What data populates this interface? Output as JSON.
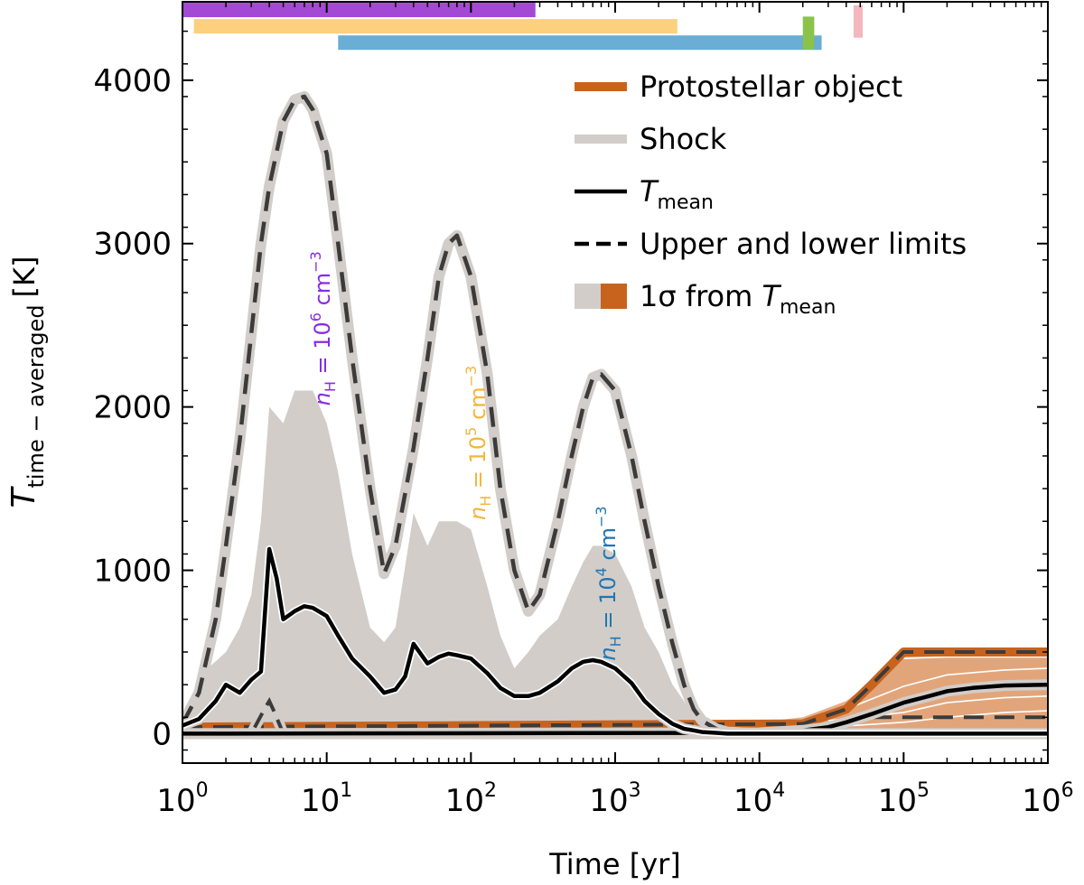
{
  "chart_data": {
    "type": "line",
    "xscale": "log",
    "xlim": [
      1,
      1000000
    ],
    "ylim": [
      -180,
      4480
    ],
    "xlabel": "Time [yr]",
    "ylabel": {
      "main": "T",
      "sub": "time − averaged",
      "unit": "[K]"
    },
    "xticks": [
      {
        "value": 1,
        "base": "10",
        "exp": "0"
      },
      {
        "value": 10,
        "base": "10",
        "exp": "1"
      },
      {
        "value": 100,
        "base": "10",
        "exp": "2"
      },
      {
        "value": 1000,
        "base": "10",
        "exp": "3"
      },
      {
        "value": 10000,
        "base": "10",
        "exp": "4"
      },
      {
        "value": 100000,
        "base": "10",
        "exp": "5"
      },
      {
        "value": 1000000,
        "base": "10",
        "exp": "6"
      }
    ],
    "yticks": [
      {
        "value": 0,
        "label": "0"
      },
      {
        "value": 1000,
        "label": "1000"
      },
      {
        "value": 2000,
        "label": "2000"
      },
      {
        "value": 3000,
        "label": "3000"
      },
      {
        "value": 4000,
        "label": "4000"
      }
    ],
    "colors": {
      "shock": "#d2cdc9",
      "protostar": "#c8631e",
      "protostar_band": "#e2a57a",
      "dashed": "#3b3b3b",
      "mean": "#000000",
      "purple": "#a349d6",
      "orange": "#fcd07d",
      "blue": "#6aadd5",
      "green": "#8bc34a",
      "pink": "#f3b8bd",
      "label_purple": "#8a2be2",
      "label_orange": "#f4b63b",
      "label_blue": "#1f77b4"
    },
    "phase_bars": [
      {
        "name": "nH 1e6",
        "color": "purple",
        "x": [
          1,
          280
        ],
        "y": 4430
      },
      {
        "name": "nH 1e5",
        "color": "orange",
        "x": [
          1.2,
          2700
        ],
        "y": 4330
      },
      {
        "name": "nH 1e4",
        "color": "blue",
        "x": [
          12,
          27000
        ],
        "y": 4230
      },
      {
        "name": "green marker",
        "color": "green",
        "x": [
          20000,
          24000
        ],
        "y": 4290,
        "tall": true
      },
      {
        "name": "pink marker",
        "color": "pink",
        "x": [
          45000,
          52000
        ],
        "y": 4360,
        "tall": true
      }
    ],
    "series": {
      "shock_upper": {
        "x": [
          1,
          1.3,
          1.7,
          2,
          2.5,
          3,
          3.5,
          4,
          5,
          6,
          7,
          8,
          10,
          12,
          15,
          20,
          25,
          30,
          40,
          50,
          60,
          70,
          80,
          100,
          130,
          160,
          200,
          250,
          300,
          400,
          500,
          600,
          700,
          800,
          1000,
          1300,
          1600,
          2000,
          2500,
          3000,
          3500,
          4000,
          5000,
          6000,
          10000,
          100000,
          1000000
        ],
        "y": [
          60,
          250,
          700,
          1150,
          1800,
          2450,
          3000,
          3350,
          3750,
          3880,
          3900,
          3820,
          3550,
          3000,
          2300,
          1500,
          980,
          1150,
          1750,
          2300,
          2800,
          3000,
          3050,
          2800,
          2200,
          1500,
          1000,
          750,
          850,
          1300,
          1700,
          2000,
          2180,
          2200,
          2100,
          1700,
          1300,
          900,
          550,
          300,
          150,
          80,
          30,
          10,
          0,
          0,
          0
        ]
      },
      "shock_lower": {
        "x": [
          1,
          3,
          3.7,
          4,
          4.3,
          5,
          1000000
        ],
        "y": [
          0,
          0,
          150,
          200,
          140,
          0,
          0
        ]
      },
      "shock_sigma_upper": {
        "x": [
          1,
          1.5,
          2,
          2.5,
          3,
          3.5,
          4,
          5,
          6,
          7,
          8,
          10,
          12,
          15,
          20,
          25,
          30,
          40,
          50,
          60,
          70,
          80,
          100,
          130,
          160,
          200,
          250,
          300,
          400,
          500,
          600,
          700,
          800,
          1000,
          1300,
          1600,
          2000,
          2500,
          3000,
          3500,
          4000,
          5000,
          10000,
          1000000
        ],
        "y": [
          30,
          400,
          500,
          650,
          850,
          1300,
          2000,
          1900,
          2100,
          2100,
          2100,
          1900,
          1600,
          1100,
          650,
          560,
          650,
          1350,
          1150,
          1300,
          1300,
          1300,
          1250,
          900,
          600,
          400,
          500,
          600,
          700,
          900,
          1050,
          1150,
          1150,
          1100,
          900,
          650,
          500,
          300,
          200,
          100,
          50,
          20,
          0,
          0
        ]
      },
      "mean": {
        "x": [
          1,
          1.3,
          1.7,
          2,
          2.5,
          3,
          3.5,
          4,
          4.5,
          5,
          6,
          7,
          8,
          10,
          12,
          15,
          20,
          25,
          30,
          35,
          40,
          50,
          60,
          70,
          80,
          100,
          130,
          160,
          200,
          250,
          300,
          400,
          500,
          600,
          700,
          800,
          1000,
          1300,
          1600,
          2000,
          2500,
          3000,
          3500,
          4000,
          5000,
          6000,
          10000,
          1000000
        ],
        "y": [
          50,
          90,
          200,
          300,
          250,
          330,
          380,
          1130,
          950,
          700,
          750,
          780,
          770,
          720,
          600,
          460,
          350,
          250,
          270,
          350,
          550,
          430,
          470,
          490,
          480,
          460,
          370,
          280,
          230,
          230,
          250,
          320,
          400,
          440,
          450,
          440,
          400,
          310,
          200,
          120,
          60,
          30,
          20,
          10,
          5,
          0,
          0,
          0
        ]
      },
      "proto_upper": {
        "x": [
          1,
          20000,
          40000,
          60000,
          100000,
          1000000
        ],
        "y": [
          40,
          60,
          150,
          300,
          500,
          500
        ]
      },
      "proto_lower": {
        "x": [
          1,
          1000000
        ],
        "y": [
          0,
          0
        ]
      },
      "proto_sigma_upper": {
        "x": [
          1,
          10000,
          20000,
          40000,
          60000,
          80000,
          100000,
          200000,
          400000,
          1000000
        ],
        "y": [
          50,
          70,
          100,
          200,
          320,
          400,
          480,
          500,
          500,
          500
        ]
      },
      "proto_sigma_lower": {
        "x": [
          1,
          1000000
        ],
        "y": [
          0,
          0
        ]
      },
      "proto_mean": {
        "x": [
          1,
          10000,
          20000,
          30000,
          40000,
          60000,
          100000,
          150000,
          200000,
          300000,
          500000,
          1000000
        ],
        "y": [
          0,
          5,
          20,
          40,
          70,
          120,
          190,
          230,
          260,
          280,
          295,
          300
        ]
      },
      "proto_white_lines": [
        {
          "x": [
            100000,
            200000,
            500000,
            1000000
          ],
          "y": [
            460,
            470,
            470,
            470
          ]
        },
        {
          "x": [
            40000,
            100000,
            200000,
            500000,
            1000000
          ],
          "y": [
            150,
            290,
            360,
            390,
            400
          ]
        },
        {
          "x": [
            30000,
            100000,
            200000,
            500000,
            1000000
          ],
          "y": [
            80,
            130,
            190,
            220,
            230
          ]
        },
        {
          "x": [
            30000,
            100000,
            200000,
            500000,
            1000000
          ],
          "y": [
            40,
            70,
            100,
            130,
            140
          ]
        }
      ],
      "proto_dash_lower": {
        "x": [
          60000,
          100000,
          1000000
        ],
        "y": [
          100,
          100,
          100
        ]
      }
    },
    "density_labels": [
      {
        "text": "n",
        "sub": "H",
        "rest": " = 10",
        "sup": "6",
        "tail": " cm",
        "sup2": "−3",
        "color": "label_purple",
        "x": 10.5,
        "y": 2480,
        "angle": -90
      },
      {
        "text": "n",
        "sub": "H",
        "rest": " = 10",
        "sup": "5",
        "tail": " cm",
        "sup2": "−3",
        "color": "label_orange",
        "x": 125,
        "y": 1780,
        "angle": -90
      },
      {
        "text": "n",
        "sub": "H",
        "rest": " = 10",
        "sup": "4",
        "tail": " cm",
        "sup2": "−3",
        "color": "label_blue",
        "x": 1000,
        "y": 920,
        "angle": -90
      }
    ],
    "legend": {
      "location": "top-right",
      "entries": [
        {
          "label": "Protostellar object",
          "style": "proto"
        },
        {
          "label": "Shock",
          "style": "shock"
        },
        {
          "label": "T",
          "label_sub": "mean",
          "style": "mean"
        },
        {
          "label": "Upper and lower limits",
          "style": "dashed"
        },
        {
          "label": "1σ from T",
          "label_sub": "mean",
          "style": "sigma"
        }
      ]
    }
  }
}
